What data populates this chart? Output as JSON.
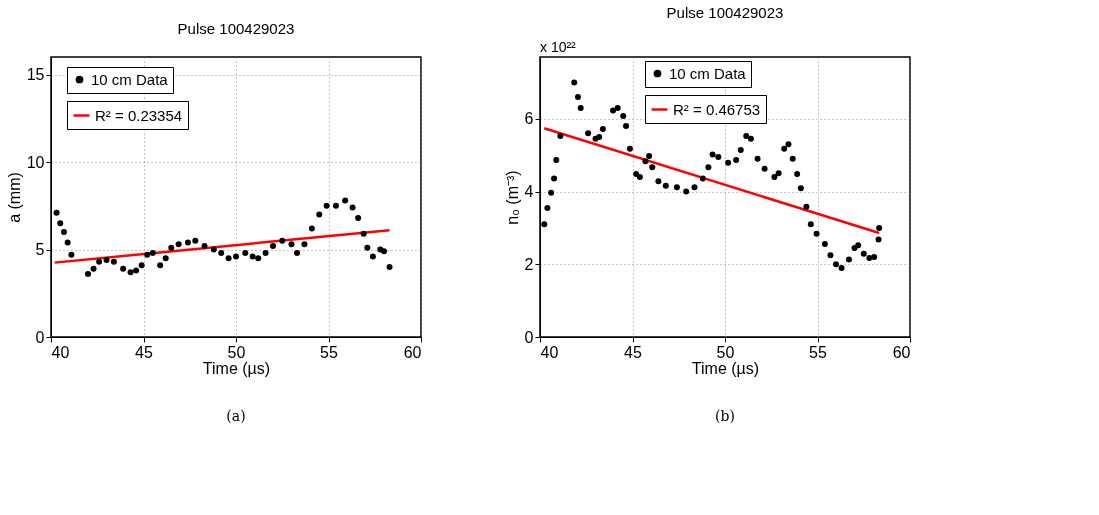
{
  "chart_data": [
    {
      "type": "scatter",
      "title": "Pulse 100429023",
      "xlabel": "Time (µs)",
      "ylabel": "a (mm)",
      "xlim": [
        40,
        60
      ],
      "xticks": [
        40,
        45,
        50,
        55,
        60
      ],
      "ylim": [
        0,
        16
      ],
      "yticks": [
        0,
        5,
        10,
        15
      ],
      "grid": true,
      "legend": "top left",
      "annotations": [
        "(a)"
      ],
      "series": [
        {
          "name": "10 cm Data",
          "color": "#000000",
          "type": "scatter",
          "marker": "circle",
          "x": [
            40.3,
            40.5,
            40.7,
            40.9,
            41.1,
            42.0,
            42.3,
            42.6,
            43.0,
            43.4,
            43.9,
            44.3,
            44.6,
            44.9,
            45.2,
            45.5,
            45.9,
            46.2,
            46.5,
            46.9,
            47.4,
            47.8,
            48.3,
            48.8,
            49.2,
            49.6,
            50.0,
            50.5,
            50.9,
            51.2,
            51.6,
            52.0,
            52.5,
            53.0,
            53.3,
            53.7,
            54.1,
            54.5,
            54.9,
            55.4,
            55.9,
            56.3,
            56.6,
            56.9,
            57.1,
            57.4,
            57.8,
            58.0,
            58.3
          ],
          "values": [
            7.1,
            6.5,
            6.0,
            5.4,
            4.7,
            3.6,
            3.9,
            4.3,
            4.4,
            4.3,
            3.9,
            3.7,
            3.8,
            4.1,
            4.7,
            4.8,
            4.1,
            4.5,
            5.1,
            5.3,
            5.4,
            5.5,
            5.2,
            5.0,
            4.8,
            4.5,
            4.6,
            4.8,
            4.6,
            4.5,
            4.8,
            5.2,
            5.5,
            5.3,
            4.8,
            5.3,
            6.2,
            7.0,
            7.5,
            7.5,
            7.8,
            7.4,
            6.8,
            5.9,
            5.1,
            4.6,
            5.0,
            4.9,
            4.0
          ]
        },
        {
          "name": "R² = 0.23354",
          "color": "#ff0000",
          "type": "line",
          "marker": "none",
          "x": [
            40.2,
            58.3
          ],
          "values": [
            4.25,
            6.1
          ]
        }
      ]
    },
    {
      "type": "scatter",
      "title": "Pulse 100429023",
      "xlabel": "Time (µs)",
      "ylabel": "n₀ (m⁻³)",
      "xlim": [
        40,
        60
      ],
      "xticks": [
        40,
        45,
        50,
        55,
        60
      ],
      "ylim": [
        0,
        7.7
      ],
      "yticks": [
        0,
        2,
        4,
        6
      ],
      "grid": true,
      "legend": "top",
      "annotations": [
        "x 10²²",
        "(b)"
      ],
      "series": [
        {
          "name": "10 cm Data",
          "color": "#000000",
          "type": "scatter",
          "marker": "circle",
          "x": [
            40.23,
            40.4,
            40.6,
            40.76,
            40.88,
            41.1,
            41.85,
            42.05,
            42.2,
            42.6,
            43.0,
            43.2,
            43.4,
            43.95,
            44.2,
            44.5,
            44.65,
            44.86,
            45.2,
            45.4,
            45.7,
            45.9,
            46.07,
            46.4,
            46.8,
            47.4,
            47.9,
            48.35,
            48.8,
            49.1,
            49.33,
            49.64,
            50.17,
            50.6,
            50.85,
            51.15,
            51.4,
            51.76,
            52.14,
            52.67,
            52.9,
            53.2,
            53.43,
            53.66,
            53.9,
            54.1,
            54.4,
            54.64,
            54.95,
            55.4,
            55.7,
            56.0,
            56.3,
            56.7,
            57.0,
            57.2,
            57.5,
            57.8,
            58.06,
            58.3,
            58.33
          ],
          "values": [
            3.1,
            3.55,
            3.97,
            4.36,
            4.87,
            5.53,
            7.0,
            6.6,
            6.3,
            5.6,
            5.45,
            5.5,
            5.72,
            6.23,
            6.3,
            6.08,
            5.8,
            5.18,
            4.48,
            4.4,
            4.83,
            4.98,
            4.67,
            4.28,
            4.16,
            4.12,
            4.0,
            4.12,
            4.36,
            4.67,
            5.02,
            4.95,
            4.79,
            4.87,
            5.14,
            5.53,
            5.45,
            4.9,
            4.63,
            4.4,
            4.5,
            5.18,
            5.3,
            4.9,
            4.48,
            4.09,
            3.58,
            3.1,
            2.84,
            2.56,
            2.25,
            2.0,
            1.9,
            2.13,
            2.45,
            2.52,
            2.29,
            2.17,
            2.2,
            2.68,
            3.0
          ]
        },
        {
          "name": "R² = 0.46753",
          "color": "#ff0000",
          "type": "line",
          "marker": "none",
          "x": [
            40.23,
            58.33
          ],
          "values": [
            5.74,
            2.86
          ]
        }
      ]
    }
  ]
}
